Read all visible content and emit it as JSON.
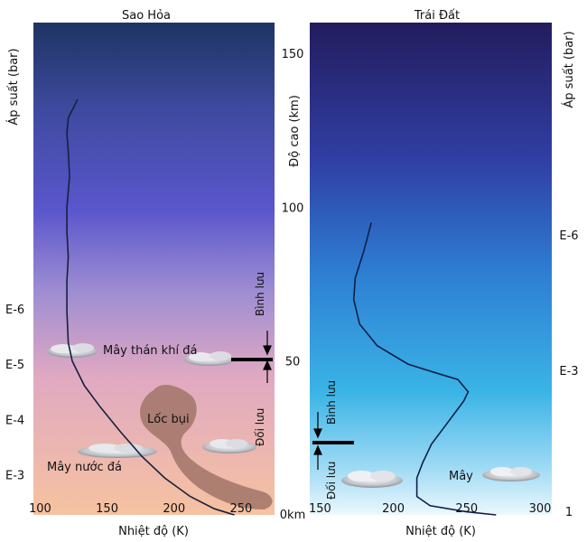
{
  "mars": {
    "title": "Sao Hỏa",
    "pressure_label": "Áp suất (bar)",
    "pressure_ticks": [
      {
        "label": "E-6",
        "alt_km": 67
      },
      {
        "label": "E-5",
        "alt_km": 49
      },
      {
        "label": "E-4",
        "alt_km": 31
      },
      {
        "label": "E-3",
        "alt_km": 13
      }
    ],
    "x_ticks": [
      {
        "label": "100",
        "k": 100
      },
      {
        "label": "150",
        "k": 150
      },
      {
        "label": "200",
        "k": 200
      },
      {
        "label": "250",
        "k": 250
      }
    ],
    "x_label": "Nhiệt độ (K)",
    "xlim": [
      95,
      275
    ],
    "labels": {
      "stratosphere": "Bình lưu",
      "troposphere": "Đối lưu",
      "co2_clouds": "Mây thán khí đá",
      "dust_devil": "Lốc bụi",
      "water_ice_clouds": "Mây nước đá"
    },
    "tropopause_km": 50,
    "temperature_profile": [
      {
        "t": 128,
        "alt": 135
      },
      {
        "t": 121,
        "alt": 129
      },
      {
        "t": 120,
        "alt": 124
      },
      {
        "t": 121,
        "alt": 118
      },
      {
        "t": 122,
        "alt": 110
      },
      {
        "t": 120,
        "alt": 100
      },
      {
        "t": 120,
        "alt": 92
      },
      {
        "t": 121,
        "alt": 84
      },
      {
        "t": 120,
        "alt": 76
      },
      {
        "t": 120,
        "alt": 66
      },
      {
        "t": 121,
        "alt": 56
      },
      {
        "t": 124,
        "alt": 50
      },
      {
        "t": 133,
        "alt": 42
      },
      {
        "t": 145,
        "alt": 35
      },
      {
        "t": 160,
        "alt": 27
      },
      {
        "t": 176,
        "alt": 19
      },
      {
        "t": 193,
        "alt": 12
      },
      {
        "t": 212,
        "alt": 6
      },
      {
        "t": 230,
        "alt": 2
      },
      {
        "t": 245,
        "alt": 0
      }
    ]
  },
  "altitude_axis": {
    "label": "Độ cao (km)",
    "ticks": [
      {
        "label": "150",
        "km": 150
      },
      {
        "label": "100",
        "km": 100
      },
      {
        "label": "50",
        "km": 50
      },
      {
        "label": "0km",
        "km": 0
      }
    ]
  },
  "earth": {
    "title": "Trái Đất",
    "pressure_label": "Áp suất (bar)",
    "pressure_ticks": [
      {
        "label": "E-6",
        "alt_km": 91
      },
      {
        "label": "E-3",
        "alt_km": 47
      },
      {
        "label": "1",
        "alt_km": 0
      }
    ],
    "x_ticks": [
      {
        "label": "150",
        "k": 150
      },
      {
        "label": "200",
        "k": 200
      },
      {
        "label": "250",
        "k": 250
      },
      {
        "label": "300",
        "k": 300
      }
    ],
    "x_label": "Nhiệt độ (K)",
    "xlim": [
      143,
      308
    ],
    "labels": {
      "stratosphere": "Bình lưu",
      "troposphere": "Đối lưu",
      "clouds": "Mây"
    },
    "tropopause_km": 23,
    "temperature_profile": [
      {
        "t": 185,
        "alt": 95
      },
      {
        "t": 180,
        "alt": 86
      },
      {
        "t": 174,
        "alt": 77
      },
      {
        "t": 173,
        "alt": 70
      },
      {
        "t": 177,
        "alt": 62
      },
      {
        "t": 189,
        "alt": 55
      },
      {
        "t": 210,
        "alt": 49
      },
      {
        "t": 230,
        "alt": 46
      },
      {
        "t": 244,
        "alt": 44
      },
      {
        "t": 251,
        "alt": 40
      },
      {
        "t": 248,
        "alt": 37
      },
      {
        "t": 237,
        "alt": 30
      },
      {
        "t": 226,
        "alt": 23
      },
      {
        "t": 220,
        "alt": 17
      },
      {
        "t": 216,
        "alt": 12
      },
      {
        "t": 216,
        "alt": 6
      },
      {
        "t": 225,
        "alt": 3
      },
      {
        "t": 250,
        "alt": 1
      },
      {
        "t": 270,
        "alt": 0
      }
    ]
  }
}
